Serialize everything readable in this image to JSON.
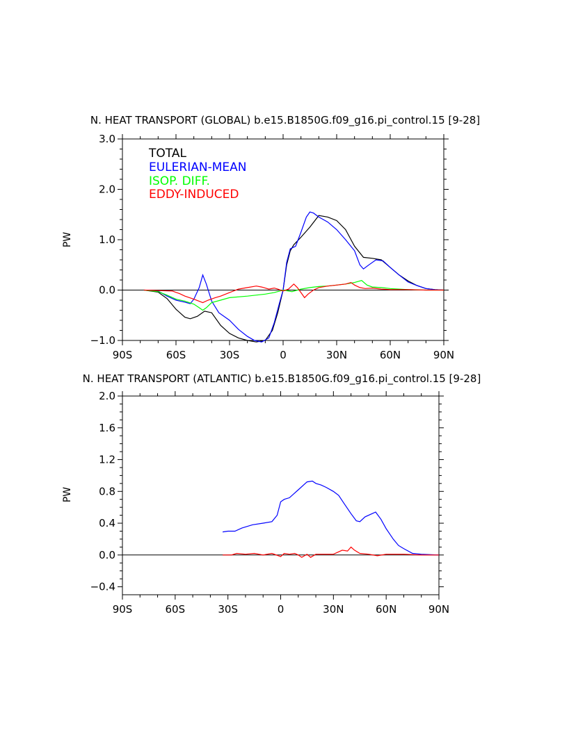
{
  "chart_data": [
    {
      "type": "line",
      "title": "N. HEAT TRANSPORT (GLOBAL) b.e15.B1850G.f09_g16.pi_control.15 [9-28]",
      "xlabel": "",
      "ylabel": "PW",
      "xlim": [
        -90,
        90
      ],
      "ylim": [
        -1.0,
        3.0
      ],
      "x_ticks": [
        -90,
        -60,
        -30,
        0,
        30,
        60,
        90
      ],
      "x_tick_labels": [
        "90S",
        "60S",
        "30S",
        "0",
        "30N",
        "60N",
        "90N"
      ],
      "y_ticks": [
        -1.0,
        0.0,
        1.0,
        2.0,
        3.0
      ],
      "y_tick_labels": [
        "−1.0",
        "0.0",
        "1.0",
        "2.0",
        "3.0"
      ],
      "zero_line": true,
      "legend": {
        "placement": "top-left"
      },
      "series": [
        {
          "name": "TOTAL",
          "color": "#000000",
          "points": [
            [
              -78,
              0
            ],
            [
              -70,
              -0.04
            ],
            [
              -65,
              -0.17
            ],
            [
              -60,
              -0.38
            ],
            [
              -55,
              -0.54
            ],
            [
              -52,
              -0.57
            ],
            [
              -48,
              -0.52
            ],
            [
              -44,
              -0.42
            ],
            [
              -40,
              -0.45
            ],
            [
              -35,
              -0.7
            ],
            [
              -30,
              -0.86
            ],
            [
              -25,
              -0.95
            ],
            [
              -20,
              -1.0
            ],
            [
              -15,
              -1.03
            ],
            [
              -10,
              -1.0
            ],
            [
              -6,
              -0.8
            ],
            [
              -3,
              -0.45
            ],
            [
              0,
              0
            ],
            [
              2,
              0.5
            ],
            [
              4,
              0.78
            ],
            [
              6,
              0.9
            ],
            [
              10,
              1.05
            ],
            [
              15,
              1.25
            ],
            [
              20,
              1.48
            ],
            [
              25,
              1.45
            ],
            [
              30,
              1.38
            ],
            [
              35,
              1.2
            ],
            [
              40,
              0.87
            ],
            [
              45,
              0.65
            ],
            [
              50,
              0.63
            ],
            [
              55,
              0.6
            ],
            [
              60,
              0.45
            ],
            [
              65,
              0.3
            ],
            [
              70,
              0.18
            ],
            [
              75,
              0.09
            ],
            [
              80,
              0.03
            ],
            [
              85,
              0.01
            ],
            [
              90,
              0
            ]
          ]
        },
        {
          "name": "EULERIAN-MEAN",
          "color": "#0000ff",
          "points": [
            [
              -78,
              0
            ],
            [
              -70,
              -0.02
            ],
            [
              -65,
              -0.12
            ],
            [
              -60,
              -0.2
            ],
            [
              -55,
              -0.24
            ],
            [
              -52,
              -0.27
            ],
            [
              -50,
              -0.18
            ],
            [
              -47,
              0.05
            ],
            [
              -45,
              0.3
            ],
            [
              -43,
              0.12
            ],
            [
              -40,
              -0.22
            ],
            [
              -36,
              -0.45
            ],
            [
              -30,
              -0.6
            ],
            [
              -25,
              -0.78
            ],
            [
              -20,
              -0.92
            ],
            [
              -16,
              -1.0
            ],
            [
              -12,
              -1.03
            ],
            [
              -8,
              -0.95
            ],
            [
              -5,
              -0.65
            ],
            [
              -2,
              -0.25
            ],
            [
              0,
              0
            ],
            [
              2,
              0.55
            ],
            [
              4,
              0.82
            ],
            [
              7,
              0.87
            ],
            [
              10,
              1.15
            ],
            [
              13,
              1.45
            ],
            [
              15,
              1.55
            ],
            [
              17,
              1.53
            ],
            [
              20,
              1.45
            ],
            [
              25,
              1.35
            ],
            [
              30,
              1.2
            ],
            [
              35,
              1.0
            ],
            [
              40,
              0.78
            ],
            [
              43,
              0.5
            ],
            [
              45,
              0.42
            ],
            [
              48,
              0.5
            ],
            [
              52,
              0.6
            ],
            [
              56,
              0.58
            ],
            [
              60,
              0.45
            ],
            [
              65,
              0.3
            ],
            [
              70,
              0.16
            ],
            [
              75,
              0.09
            ],
            [
              80,
              0.03
            ],
            [
              85,
              0.01
            ],
            [
              90,
              0
            ]
          ]
        },
        {
          "name": "ISOP. DIFF.",
          "color": "#00ff00",
          "points": [
            [
              -78,
              0
            ],
            [
              -70,
              -0.03
            ],
            [
              -65,
              -0.1
            ],
            [
              -60,
              -0.18
            ],
            [
              -55,
              -0.22
            ],
            [
              -50,
              -0.28
            ],
            [
              -47,
              -0.35
            ],
            [
              -45,
              -0.4
            ],
            [
              -43,
              -0.35
            ],
            [
              -40,
              -0.25
            ],
            [
              -35,
              -0.2
            ],
            [
              -30,
              -0.15
            ],
            [
              -20,
              -0.12
            ],
            [
              -10,
              -0.08
            ],
            [
              -5,
              -0.05
            ],
            [
              0,
              0
            ],
            [
              5,
              -0.03
            ],
            [
              10,
              0.02
            ],
            [
              15,
              0.05
            ],
            [
              20,
              0.07
            ],
            [
              25,
              0.08
            ],
            [
              30,
              0.1
            ],
            [
              35,
              0.12
            ],
            [
              40,
              0.15
            ],
            [
              44,
              0.19
            ],
            [
              47,
              0.1
            ],
            [
              50,
              0.06
            ],
            [
              55,
              0.05
            ],
            [
              60,
              0.03
            ],
            [
              70,
              0.01
            ],
            [
              80,
              0
            ],
            [
              90,
              0
            ]
          ]
        },
        {
          "name": "EDDY-INDUCED",
          "color": "#ff0000",
          "points": [
            [
              -78,
              0
            ],
            [
              -70,
              -0.01
            ],
            [
              -62,
              -0.02
            ],
            [
              -58,
              -0.07
            ],
            [
              -55,
              -0.12
            ],
            [
              -50,
              -0.18
            ],
            [
              -45,
              -0.25
            ],
            [
              -42,
              -0.2
            ],
            [
              -38,
              -0.15
            ],
            [
              -35,
              -0.12
            ],
            [
              -30,
              -0.05
            ],
            [
              -25,
              0.02
            ],
            [
              -20,
              0.05
            ],
            [
              -15,
              0.08
            ],
            [
              -12,
              0.06
            ],
            [
              -8,
              0.02
            ],
            [
              -5,
              0.04
            ],
            [
              -3,
              0.02
            ],
            [
              0,
              -0.02
            ],
            [
              3,
              0.02
            ],
            [
              6,
              0.12
            ],
            [
              8,
              0.05
            ],
            [
              10,
              -0.05
            ],
            [
              12,
              -0.15
            ],
            [
              14,
              -0.08
            ],
            [
              17,
              0
            ],
            [
              20,
              0.05
            ],
            [
              25,
              0.08
            ],
            [
              30,
              0.1
            ],
            [
              35,
              0.12
            ],
            [
              38,
              0.15
            ],
            [
              40,
              0.1
            ],
            [
              43,
              0.05
            ],
            [
              46,
              0.03
            ],
            [
              50,
              0.04
            ],
            [
              55,
              0.02
            ],
            [
              60,
              0.01
            ],
            [
              70,
              0.01
            ],
            [
              80,
              0
            ],
            [
              90,
              0
            ]
          ]
        }
      ]
    },
    {
      "type": "line",
      "title": "N. HEAT TRANSPORT (ATLANTIC) b.e15.B1850G.f09_g16.pi_control.15 [9-28]",
      "xlabel": "",
      "ylabel": "PW",
      "xlim": [
        -90,
        90
      ],
      "ylim": [
        -0.5,
        2.0
      ],
      "x_ticks": [
        -90,
        -60,
        -30,
        0,
        30,
        60,
        90
      ],
      "x_tick_labels": [
        "90S",
        "60S",
        "30S",
        "0",
        "30N",
        "60N",
        "90N"
      ],
      "y_ticks": [
        -0.4,
        0.0,
        0.4,
        0.8,
        1.2,
        1.6,
        2.0
      ],
      "y_tick_labels": [
        "−0.4",
        "0.0",
        "0.4",
        "0.8",
        "1.2",
        "1.6",
        "2.0"
      ],
      "zero_line": true,
      "series": [
        {
          "name": "EULERIAN-MEAN",
          "color": "#0000ff",
          "points": [
            [
              -33,
              0.29
            ],
            [
              -30,
              0.3
            ],
            [
              -26,
              0.3
            ],
            [
              -22,
              0.34
            ],
            [
              -16,
              0.38
            ],
            [
              -10,
              0.4
            ],
            [
              -5,
              0.42
            ],
            [
              -2,
              0.5
            ],
            [
              0,
              0.67
            ],
            [
              2,
              0.7
            ],
            [
              5,
              0.72
            ],
            [
              8,
              0.78
            ],
            [
              10,
              0.82
            ],
            [
              13,
              0.88
            ],
            [
              15,
              0.92
            ],
            [
              18,
              0.93
            ],
            [
              20,
              0.9
            ],
            [
              23,
              0.88
            ],
            [
              26,
              0.85
            ],
            [
              30,
              0.8
            ],
            [
              33,
              0.75
            ],
            [
              36,
              0.65
            ],
            [
              40,
              0.52
            ],
            [
              43,
              0.43
            ],
            [
              45,
              0.42
            ],
            [
              48,
              0.48
            ],
            [
              52,
              0.52
            ],
            [
              54,
              0.54
            ],
            [
              57,
              0.45
            ],
            [
              60,
              0.33
            ],
            [
              64,
              0.2
            ],
            [
              67,
              0.12
            ],
            [
              70,
              0.08
            ],
            [
              75,
              0.02
            ],
            [
              80,
              0.01
            ],
            [
              90,
              0
            ]
          ]
        },
        {
          "name": "EDDY-INDUCED",
          "color": "#ff0000",
          "points": [
            [
              -33,
              0
            ],
            [
              -28,
              0
            ],
            [
              -25,
              0.02
            ],
            [
              -20,
              0.01
            ],
            [
              -15,
              0.02
            ],
            [
              -10,
              0
            ],
            [
              -5,
              0.02
            ],
            [
              0,
              -0.02
            ],
            [
              2,
              0.02
            ],
            [
              5,
              0.01
            ],
            [
              8,
              0.02
            ],
            [
              10,
              0
            ],
            [
              12,
              -0.03
            ],
            [
              15,
              0.01
            ],
            [
              17,
              -0.03
            ],
            [
              20,
              0.01
            ],
            [
              25,
              0.01
            ],
            [
              30,
              0.01
            ],
            [
              35,
              0.06
            ],
            [
              38,
              0.05
            ],
            [
              40,
              0.1
            ],
            [
              42,
              0.06
            ],
            [
              45,
              0.02
            ],
            [
              50,
              0.01
            ],
            [
              55,
              -0.01
            ],
            [
              60,
              0.01
            ],
            [
              65,
              0.01
            ],
            [
              70,
              0.01
            ],
            [
              80,
              0
            ],
            [
              90,
              0
            ]
          ]
        }
      ]
    }
  ]
}
